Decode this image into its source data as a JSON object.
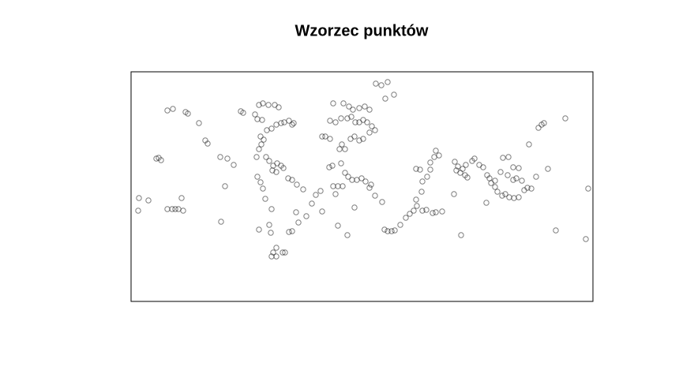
{
  "chart_data": {
    "type": "scatter",
    "title": "Wzorzec punktów",
    "color": "#000000",
    "xlim": [
      0,
      585
    ],
    "ylim": [
      0,
      291
    ],
    "x": [
      46,
      53,
      69,
      72,
      86,
      94,
      97,
      32,
      35,
      38,
      113,
      122,
      130,
      10,
      22,
      9,
      46,
      52,
      56,
      60,
      66,
      64,
      114,
      119,
      139,
      142,
      162,
      167,
      174,
      182,
      187,
      157,
      160,
      166,
      172,
      178,
      184,
      190,
      194,
      200,
      204,
      206,
      164,
      168,
      165,
      162,
      159,
      171,
      175,
      180,
      185,
      190,
      193,
      179,
      184,
      199,
      204,
      210,
      160,
      164,
      167,
      170,
      178,
      162,
      175,
      177,
      200,
      204,
      184,
      180,
      178,
      184,
      192,
      195,
      218,
      209,
      212,
      222,
      229,
      234,
      240,
      242,
      256,
      269,
      276,
      281,
      289,
      296,
      302,
      252,
      259,
      266,
      274,
      279,
      284,
      289,
      294,
      299,
      305,
      309,
      242,
      246,
      252,
      267,
      264,
      271,
      278,
      283,
      289,
      294,
      302,
      255,
      251,
      266,
      271,
      275,
      280,
      286,
      292,
      297,
      302,
      304,
      309,
      256,
      262,
      268,
      259,
      283,
      318,
      262,
      274,
      310,
      317,
      325,
      322,
      333,
      321,
      325,
      330,
      334,
      341,
      348,
      353,
      358,
      362,
      369,
      374,
      382,
      386,
      394,
      361,
      368,
      369,
      375,
      361,
      366,
      379,
      384,
      390,
      386,
      379,
      410,
      414,
      412,
      417,
      420,
      423,
      426,
      424,
      432,
      435,
      441,
      446,
      451,
      454,
      456,
      461,
      464,
      470,
      474,
      479,
      485,
      491,
      498,
      502,
      507,
      461,
      468,
      471,
      478,
      484,
      491,
      477,
      484,
      488,
      495,
      513,
      528,
      504,
      516,
      520,
      523,
      550,
      409,
      418,
      450,
      538,
      576,
      579
    ],
    "values": [
      242,
      244,
      240,
      238,
      226,
      204,
      200,
      181,
      182,
      179,
      183,
      181,
      173,
      131,
      128,
      115,
      117,
      117,
      117,
      117,
      115,
      131,
      101,
      146,
      241,
      239,
      249,
      251,
      249,
      249,
      246,
      237,
      231,
      230,
      217,
      219,
      224,
      226,
      227,
      229,
      224,
      226,
      209,
      205,
      199,
      193,
      183,
      183,
      178,
      172,
      175,
      172,
      169,
      166,
      164,
      156,
      154,
      148,
      158,
      151,
      143,
      130,
      117,
      91,
      97,
      87,
      88,
      89,
      68,
      62,
      57,
      57,
      62,
      62,
      142,
      113,
      100,
      108,
      124,
      135,
      140,
      114,
      251,
      251,
      247,
      243,
      245,
      247,
      243,
      229,
      227,
      232,
      232,
      234,
      227,
      227,
      230,
      227,
      222,
      217,
      209,
      209,
      206,
      199,
      193,
      193,
      206,
      209,
      204,
      206,
      214,
      172,
      170,
      175,
      163,
      158,
      154,
      154,
      156,
      152,
      144,
      148,
      134,
      146,
      146,
      146,
      136,
      119,
      126,
      96,
      84,
      276,
      274,
      278,
      257,
      262,
      91,
      89,
      89,
      90,
      97,
      106,
      111,
      115,
      121,
      115,
      116,
      112,
      113,
      114,
      129,
      139,
      152,
      158,
      168,
      167,
      167,
      183,
      185,
      191,
      176,
      177,
      171,
      166,
      163,
      168,
      160,
      157,
      173,
      178,
      181,
      173,
      170,
      160,
      156,
      150,
      145,
      139,
      134,
      136,
      132,
      131,
      132,
      141,
      144,
      143,
      153,
      164,
      182,
      183,
      170,
      169,
      160,
      154,
      156,
      153,
      158,
      168,
      199,
      220,
      224,
      226,
      232,
      136,
      84,
      125,
      90,
      79,
      143
    ]
  }
}
